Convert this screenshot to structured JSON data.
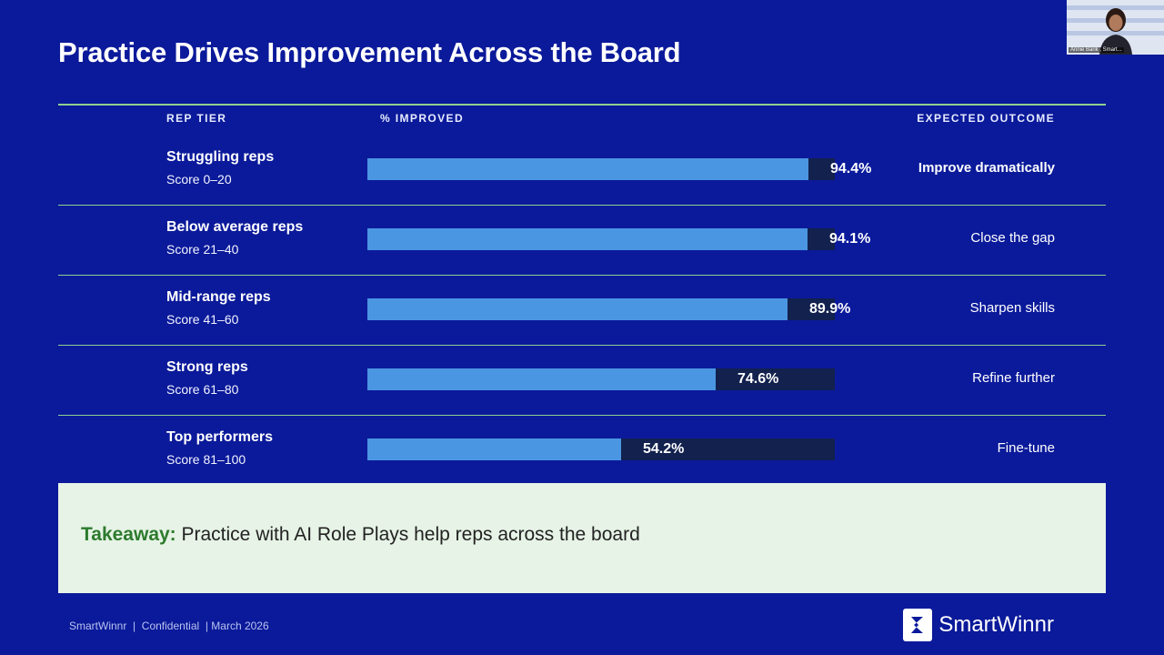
{
  "slide": {
    "title": "Practice Drives Improvement Across the Board"
  },
  "table": {
    "headers": {
      "tier": "REP TIER",
      "improved": "% IMPROVED",
      "outcome": "EXPECTED OUTCOME"
    },
    "rows": [
      {
        "tier": "Struggling reps",
        "score": "Score 0–20",
        "percent_label": "94.4%",
        "percent": 94.4,
        "outcome": "Improve dramatically"
      },
      {
        "tier": "Below average reps",
        "score": "Score 21–40",
        "percent_label": "94.1%",
        "percent": 94.1,
        "outcome": "Close the gap"
      },
      {
        "tier": "Mid-range reps",
        "score": "Score 41–60",
        "percent_label": "89.9%",
        "percent": 89.9,
        "outcome": "Sharpen skills"
      },
      {
        "tier": "Strong reps",
        "score": "Score 61–80",
        "percent_label": "74.6%",
        "percent": 74.6,
        "outcome": "Refine further"
      },
      {
        "tier": "Top performers",
        "score": "Score 81–100",
        "percent_label": "54.2%",
        "percent": 54.2,
        "outcome": "Fine-tune"
      }
    ]
  },
  "takeaway": {
    "label": "Takeaway:",
    "text": " Practice with AI Role Plays help reps across the board"
  },
  "footer": {
    "note": "SmartWinnr  |  Confidential  | March 2026",
    "brand": "SmartWinnr"
  },
  "video": {
    "caption": "Annie Barik , Smart..."
  },
  "colors": {
    "background": "#0b1a9a",
    "bar_fill": "#4a96e3",
    "bar_track": "#12214d",
    "rule": "#8fd18f",
    "takeaway_bg": "#e6f3e6",
    "takeaway_accent": "#2d7a2d"
  }
}
